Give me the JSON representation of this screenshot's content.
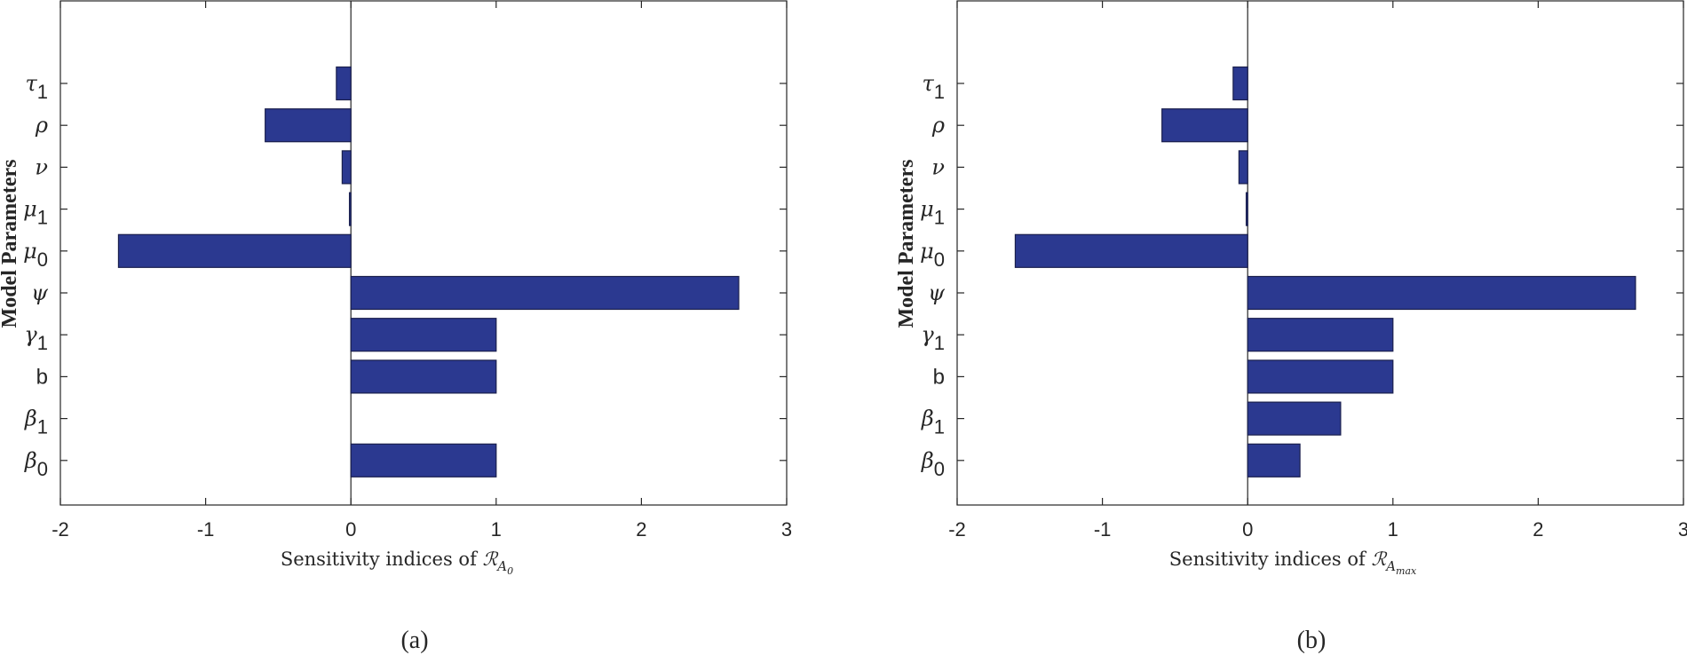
{
  "chart_data": [
    {
      "type": "bar",
      "orientation": "horizontal",
      "panel_label": "(a)",
      "categories": [
        {
          "symbol": "τ",
          "sub": "1"
        },
        {
          "symbol": "ρ",
          "sub": ""
        },
        {
          "symbol": "ν",
          "sub": ""
        },
        {
          "symbol": "μ",
          "sub": "1"
        },
        {
          "symbol": "μ",
          "sub": "0"
        },
        {
          "symbol": "ψ",
          "sub": ""
        },
        {
          "symbol": "γ",
          "sub": "1"
        },
        {
          "symbol": "b",
          "sub": ""
        },
        {
          "symbol": "β",
          "sub": "1"
        },
        {
          "symbol": "β",
          "sub": "0"
        }
      ],
      "values": [
        -0.1,
        -0.59,
        -0.06,
        -0.01,
        -1.6,
        2.67,
        1.0,
        1.0,
        0,
        1.0
      ],
      "xlim": [
        -2,
        3
      ],
      "xticks": [
        "-2",
        "-1",
        "0",
        "1",
        "2",
        "3"
      ],
      "xlabel_text": "Sensitivity indices of ",
      "xlabel_symbol": "ℛ",
      "xlabel_sub": "A",
      "xlabel_subsub": "0",
      "ylabel": "Model Parameters",
      "bar_color": "#2b3990",
      "grid": false
    },
    {
      "type": "bar",
      "orientation": "horizontal",
      "panel_label": "(b)",
      "categories": [
        {
          "symbol": "τ",
          "sub": "1"
        },
        {
          "symbol": "ρ",
          "sub": ""
        },
        {
          "symbol": "ν",
          "sub": ""
        },
        {
          "symbol": "μ",
          "sub": "1"
        },
        {
          "symbol": "μ",
          "sub": "0"
        },
        {
          "symbol": "ψ",
          "sub": ""
        },
        {
          "symbol": "γ",
          "sub": "1"
        },
        {
          "symbol": "b",
          "sub": ""
        },
        {
          "symbol": "β",
          "sub": "1"
        },
        {
          "symbol": "β",
          "sub": "0"
        }
      ],
      "values": [
        -0.1,
        -0.59,
        -0.06,
        -0.01,
        -1.6,
        2.67,
        1.0,
        1.0,
        0.64,
        0.36
      ],
      "xlim": [
        -2,
        3
      ],
      "xticks": [
        "-2",
        "-1",
        "0",
        "1",
        "2",
        "3"
      ],
      "xlabel_text": "Sensitivity indices of ",
      "xlabel_symbol": "ℛ",
      "xlabel_sub": "A",
      "xlabel_subsub": "max",
      "ylabel": "Model Parameters",
      "bar_color": "#2b3990",
      "grid": false
    }
  ]
}
